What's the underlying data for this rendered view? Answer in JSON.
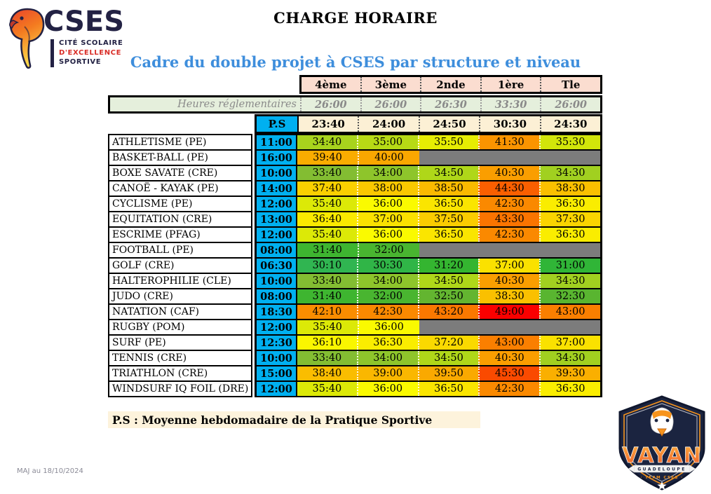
{
  "colors": {
    "accent_blue": "#3E8EDC",
    "navy": "#232244",
    "logo_red": "#D92D27",
    "cyan": "#00B0F0",
    "header_pink": "#FBDDD0",
    "reg_green": "#E5EFDC",
    "cream": "#FCF0D5",
    "note_cream": "#FDF3DC",
    "gray_cell": "#7C7C7C",
    "badge_navy": "#1B2440",
    "badge_orange": "#F7941D"
  },
  "logo": {
    "acronym": "CSES",
    "tagline_line1": "CITÉ SCOLAIRE",
    "tagline_line2": "D'EXCELLENCE",
    "tagline_line3": "SPORTIVE"
  },
  "title": "CHARGE HORAIRE",
  "subtitle": "Cadre du double projet à CSES par structure et niveau",
  "table": {
    "grade_columns": [
      "4ème",
      "3ème",
      "2nde",
      "1ère",
      "Tle"
    ],
    "reglementaires": {
      "label": "Heures réglementaires",
      "values": [
        "26:00",
        "26:00",
        "26:30",
        "33:30",
        "26:00"
      ]
    },
    "ps_header": {
      "label": "P.S",
      "values": [
        "23:40",
        "24:00",
        "24:50",
        "30:30",
        "24:30"
      ]
    },
    "rows": [
      {
        "sport": "ATHLETISME (PE)",
        "ps": "11:00",
        "values": [
          "34:40",
          "35:00",
          "35:50",
          "41:30",
          "35:30"
        ]
      },
      {
        "sport": "BASKET-BALL (PE)",
        "ps": "16:00",
        "values": [
          "39:40",
          "40:00",
          null,
          null,
          null
        ]
      },
      {
        "sport": "BOXE SAVATE (CRE)",
        "ps": "10:00",
        "values": [
          "33:40",
          "34:00",
          "34:50",
          "40:30",
          "34:30"
        ]
      },
      {
        "sport": "CANOË - KAYAK (PE)",
        "ps": "14:00",
        "values": [
          "37:40",
          "38:00",
          "38:50",
          "44:30",
          "38:30"
        ]
      },
      {
        "sport": "CYCLISME (PE)",
        "ps": "12:00",
        "values": [
          "35:40",
          "36:00",
          "36:50",
          "42:30",
          "36:30"
        ]
      },
      {
        "sport": "EQUITATION (CRE)",
        "ps": "13:00",
        "values": [
          "36:40",
          "37:00",
          "37:50",
          "43:30",
          "37:30"
        ]
      },
      {
        "sport": "ESCRIME (PFAG)",
        "ps": "12:00",
        "values": [
          "35:40",
          "36:00",
          "36:50",
          "42:30",
          "36:30"
        ]
      },
      {
        "sport": "FOOTBALL (PE)",
        "ps": "08:00",
        "values": [
          "31:40",
          "32:00",
          null,
          null,
          null
        ]
      },
      {
        "sport": "GOLF (CRE)",
        "ps": "06:30",
        "values": [
          "30:10",
          "30:30",
          "31:20",
          "37:00",
          "31:00"
        ]
      },
      {
        "sport": "HALTEROPHILIE (CLE)",
        "ps": "10:00",
        "values": [
          "33:40",
          "34:00",
          "34:50",
          "40:30",
          "34:30"
        ]
      },
      {
        "sport": "JUDO (CRE)",
        "ps": "08:00",
        "values": [
          "31:40",
          "32:00",
          "32:50",
          "38:30",
          "32:30"
        ]
      },
      {
        "sport": "NATATION (CAF)",
        "ps": "18:30",
        "values": [
          "42:10",
          "42:30",
          "43:20",
          "49:00",
          "43:00"
        ]
      },
      {
        "sport": "RUGBY (POM)",
        "ps": "12:00",
        "values": [
          "35:40",
          "36:00",
          null,
          null,
          null
        ]
      },
      {
        "sport": "SURF (PE)",
        "ps": "12:30",
        "values": [
          "36:10",
          "36:30",
          "37:20",
          "43:00",
          "37:00"
        ]
      },
      {
        "sport": "TENNIS (CRE)",
        "ps": "10:00",
        "values": [
          "33:40",
          "34:00",
          "34:50",
          "40:30",
          "34:30"
        ]
      },
      {
        "sport": "TRIATHLON (CRE)",
        "ps": "15:00",
        "values": [
          "38:40",
          "39:00",
          "39:50",
          "45:30",
          "39:30"
        ]
      },
      {
        "sport": "WINDSURF IQ FOIL (DRE)",
        "ps": "12:00",
        "values": [
          "35:40",
          "36:00",
          "36:50",
          "42:30",
          "36:30"
        ]
      }
    ]
  },
  "footnote": "P.S : Moyenne hebdomadaire de la Pratique Sportive",
  "updated_label": "MAJ au 18/10/2024",
  "badge": {
    "title": "VAYAN",
    "subtitle": "GUADELOUPE",
    "team": "· TEAM CSES ·"
  }
}
